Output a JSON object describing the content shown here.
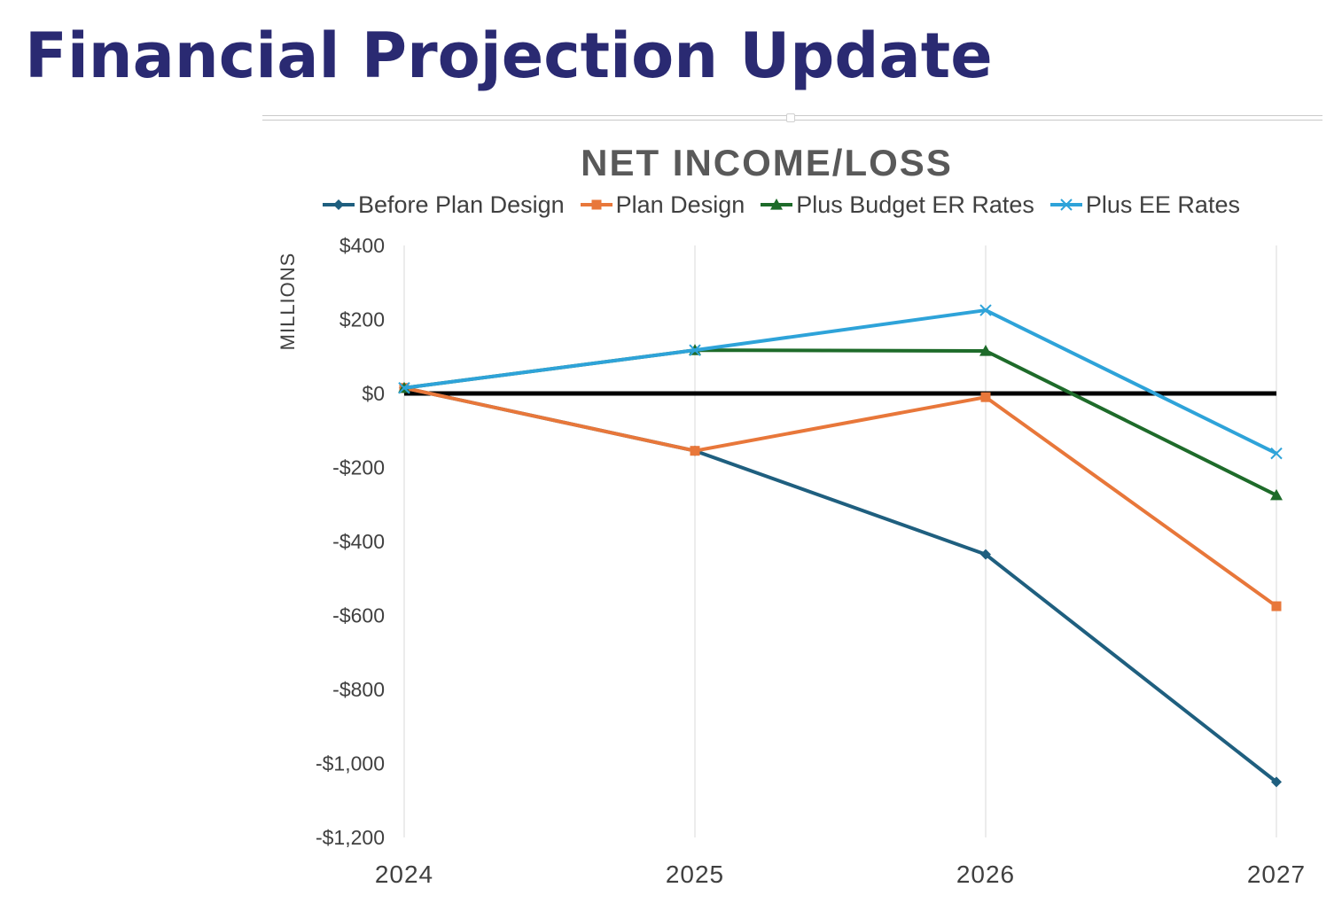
{
  "slide": {
    "title": "Financial Projection Update"
  },
  "chart_data": {
    "type": "line",
    "title": "NET INCOME/LOSS",
    "xlabel": "",
    "ylabel": "MILLIONS",
    "x": [
      "2024",
      "2025",
      "2026",
      "2027"
    ],
    "ylim": [
      -1200,
      400
    ],
    "yticks": [
      400,
      200,
      0,
      -200,
      -400,
      -600,
      -800,
      -1000,
      -1200
    ],
    "ytick_labels": [
      "$400",
      "$200",
      "$0",
      "-$200",
      "-$400",
      "-$600",
      "-$800",
      "-$1,000",
      "-$1,200"
    ],
    "grid": "vertical",
    "legend_position": "top",
    "zero_line": true,
    "series": [
      {
        "name": "Before Plan Design",
        "color": "#1f5f7f",
        "marker": "diamond",
        "values": [
          15,
          -155,
          -435,
          -1050
        ]
      },
      {
        "name": "Plan Design",
        "color": "#e8773a",
        "marker": "square",
        "values": [
          15,
          -155,
          -10,
          -575
        ]
      },
      {
        "name": "Plus Budget ER Rates",
        "color": "#1e6b2a",
        "marker": "triangle",
        "values": [
          15,
          117,
          115,
          -275
        ]
      },
      {
        "name": "Plus EE Rates",
        "color": "#2ea3d9",
        "marker": "x",
        "values": [
          15,
          117,
          225,
          -162
        ]
      }
    ]
  }
}
